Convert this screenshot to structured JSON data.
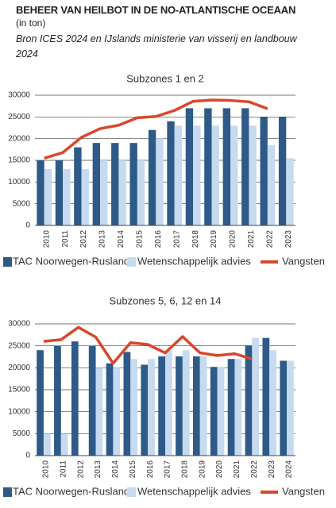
{
  "header": {
    "title": "BEHEER VAN HEILBOT IN DE NO-ATLANTISCHE OCEAAN",
    "subtitle": "(in ton)",
    "source": "Bron ICES 2024 en IJslands ministerie van visserij en landbouw 2024"
  },
  "chart_data": [
    {
      "type": "bar",
      "title": "Subzones 1 en 2",
      "categories": [
        "2010",
        "2011",
        "2012",
        "2013",
        "2014",
        "2015",
        "2016",
        "2017",
        "2018",
        "2019",
        "2020",
        "2021",
        "2022",
        "2023"
      ],
      "series": [
        {
          "name": "TAC Noorwegen-Rusland",
          "color": "#2e5a87",
          "values": [
            15000,
            15000,
            18000,
            19000,
            19000,
            19000,
            22000,
            24000,
            27000,
            27000,
            27000,
            27000,
            25000,
            25000
          ]
        },
        {
          "name": "Wetenschappelijk advies",
          "color": "#c6daf0",
          "values": [
            13000,
            13000,
            13000,
            15000,
            15000,
            15000,
            20000,
            23000,
            23000,
            23000,
            23000,
            23000,
            18500,
            15500
          ]
        },
        {
          "name": "Vangsten",
          "color": "#d9472b",
          "type": "line",
          "values": [
            15500,
            16800,
            20300,
            22300,
            23100,
            24800,
            25100,
            26500,
            28600,
            28900,
            28800,
            28500,
            26900,
            null
          ]
        }
      ],
      "ylim": [
        0,
        30000
      ],
      "yticks": [
        0,
        5000,
        10000,
        15000,
        20000,
        25000,
        30000
      ],
      "grid": true
    },
    {
      "type": "bar",
      "title": "Subzones 5, 6, 12 en 14",
      "categories": [
        "2010",
        "2011",
        "2012",
        "2013",
        "2014",
        "2015",
        "2016",
        "2017",
        "2018",
        "2019",
        "2020",
        "2021",
        "2022",
        "2023",
        "2024"
      ],
      "series": [
        {
          "name": "TAC Noorwegen-Rusland",
          "color": "#2e5a87",
          "values": [
            24000,
            25000,
            26000,
            25000,
            21000,
            23600,
            20700,
            22600,
            22600,
            22600,
            20200,
            22000,
            25100,
            26800,
            21600
          ]
        },
        {
          "name": "Wetenschappelijk advies",
          "color": "#c6daf0",
          "values": [
            5000,
            5000,
            null,
            20000,
            20000,
            22000,
            22000,
            24000,
            24000,
            22600,
            20200,
            22000,
            26800,
            24000,
            21600
          ]
        },
        {
          "name": "Vangsten",
          "color": "#d9472b",
          "type": "line",
          "values": [
            26000,
            26400,
            29200,
            27000,
            21000,
            25700,
            25300,
            23400,
            27100,
            23400,
            22800,
            23200,
            22000,
            null,
            null
          ]
        }
      ],
      "ylim": [
        0,
        30000
      ],
      "yticks": [
        0,
        5000,
        10000,
        15000,
        20000,
        25000,
        30000
      ],
      "grid": true
    }
  ]
}
